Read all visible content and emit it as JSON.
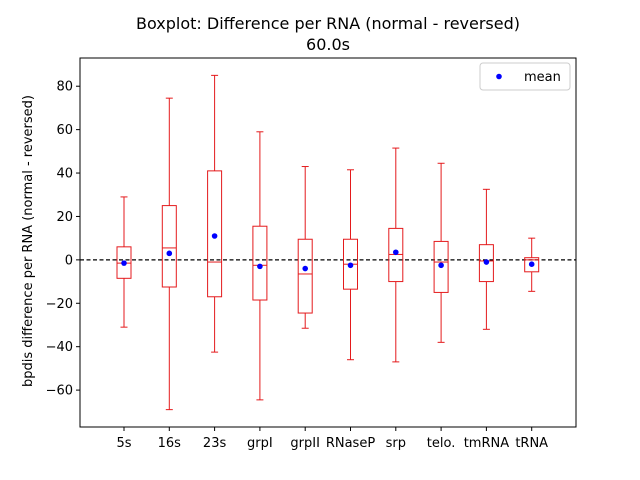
{
  "chart_data": {
    "type": "boxplot",
    "title": "Boxplot: Difference per RNA (normal - reversed)",
    "subtitle": "60.0s",
    "xlabel": "",
    "ylabel": "bpdis difference per RNA (normal - reversed)",
    "ylim": [
      -77,
      93
    ],
    "yticks": [
      -60,
      -40,
      -20,
      0,
      20,
      40,
      60,
      80
    ],
    "reference_line": 0,
    "legend": {
      "position": "top-right",
      "label": "mean"
    },
    "colors": {
      "box": "#e41a1c",
      "mean": "#0000ff",
      "reference": "#000000"
    },
    "categories": [
      "5s",
      "16s",
      "23s",
      "grpI",
      "grpII",
      "RNaseP",
      "srp",
      "telo.",
      "tmRNA",
      "tRNA"
    ],
    "boxes": [
      {
        "label": "5s",
        "whisker_low": -31,
        "q1": -8.5,
        "median": -1.5,
        "q3": 6,
        "whisker_high": 29,
        "mean": -1.5
      },
      {
        "label": "16s",
        "whisker_low": -69,
        "q1": -12.5,
        "median": 5.5,
        "q3": 25,
        "whisker_high": 74.5,
        "mean": 3
      },
      {
        "label": "23s",
        "whisker_low": -42.5,
        "q1": -17,
        "median": -1,
        "q3": 41,
        "whisker_high": 85,
        "mean": 11
      },
      {
        "label": "grpI",
        "whisker_low": -64.5,
        "q1": -18.5,
        "median": -2.5,
        "q3": 15.5,
        "whisker_high": 59,
        "mean": -3
      },
      {
        "label": "grpII",
        "whisker_low": -31.5,
        "q1": -24.5,
        "median": -6.5,
        "q3": 9.5,
        "whisker_high": 43,
        "mean": -4
      },
      {
        "label": "RNaseP",
        "whisker_low": -46,
        "q1": -13.5,
        "median": -2,
        "q3": 9.5,
        "whisker_high": 41.5,
        "mean": -2.5
      },
      {
        "label": "srp",
        "whisker_low": -47,
        "q1": -10,
        "median": 2.5,
        "q3": 14.5,
        "whisker_high": 51.5,
        "mean": 3.5
      },
      {
        "label": "telo.",
        "whisker_low": -38,
        "q1": -15,
        "median": -1,
        "q3": 8.5,
        "whisker_high": 44.5,
        "mean": -2.5
      },
      {
        "label": "tmRNA",
        "whisker_low": -32,
        "q1": -10,
        "median": -0.5,
        "q3": 7,
        "whisker_high": 32.5,
        "mean": -1
      },
      {
        "label": "tRNA",
        "whisker_low": -14.5,
        "q1": -5.5,
        "median": 0,
        "q3": 1,
        "whisker_high": 10,
        "mean": -2
      }
    ]
  }
}
